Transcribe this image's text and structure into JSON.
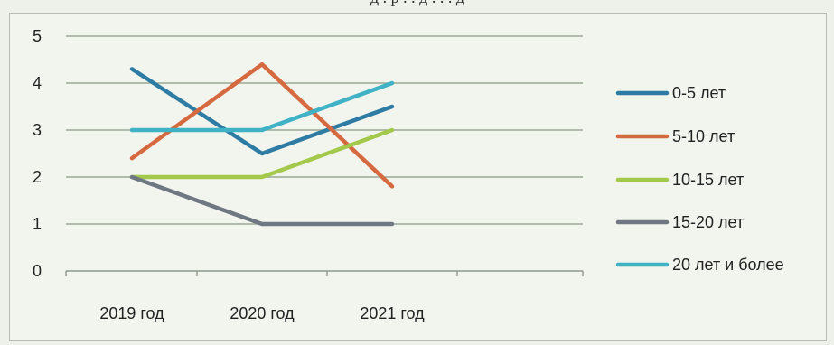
{
  "top_text": "д . р            . .     д     .   . .  д",
  "chart_data": {
    "type": "line",
    "categories": [
      "2019 год",
      "2020 год",
      "2021 год"
    ],
    "ylim": [
      0,
      5
    ],
    "yticks": [
      0,
      1,
      2,
      3,
      4,
      5
    ],
    "grid": true,
    "legend": "right",
    "series": [
      {
        "name": "0-5 лет",
        "values": [
          4.3,
          2.5,
          3.5
        ],
        "color": "#2e7ca3"
      },
      {
        "name": "5-10 лет",
        "values": [
          2.4,
          4.4,
          1.8
        ],
        "color": "#d5693f"
      },
      {
        "name": "10-15 лет",
        "values": [
          2.0,
          2.0,
          3.0
        ],
        "color": "#a3c94a"
      },
      {
        "name": "15-20 лет",
        "values": [
          2.0,
          1.0,
          1.0
        ],
        "color": "#6f7782"
      },
      {
        "name": "20 лет и более",
        "values": [
          3.0,
          3.0,
          4.0
        ],
        "color": "#3fb2c6"
      }
    ]
  }
}
